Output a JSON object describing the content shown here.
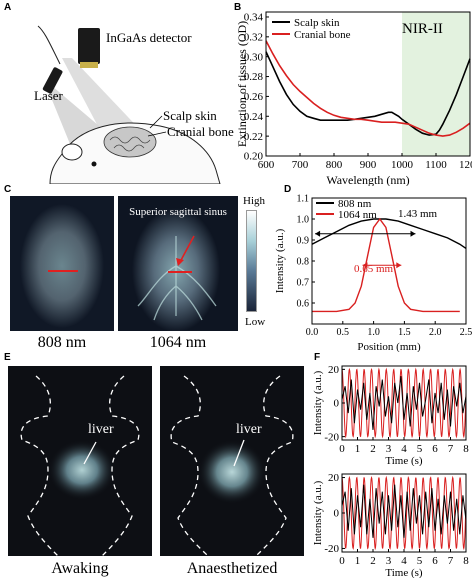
{
  "colors": {
    "black": "#000000",
    "red": "#d92020",
    "nir_band": "#e3f2df",
    "img_bg": "#101826"
  },
  "panel_a": {
    "label": "A",
    "detector": "InGaAs detector",
    "laser": "Laser",
    "scalp": "Scalp skin",
    "bone": "Cranial bone"
  },
  "panel_b": {
    "label": "B",
    "nir_label": "NIR-II"
  },
  "panel_c": {
    "label": "C",
    "annotation": "Superior sagittal sinus",
    "scale_high": "High",
    "scale_low": "Low",
    "cap_808": "808 nm",
    "cap_1064": "1064 nm"
  },
  "panel_d": {
    "label": "D",
    "width_808": "1.43 mm",
    "width_1064": "0.65 mm"
  },
  "panel_e": {
    "label": "E",
    "liver": "liver",
    "cap_awake": "Awaking",
    "cap_anaes": "Anaesthetized"
  },
  "panel_f": {
    "label": "F"
  },
  "chart_data": [
    {
      "id": "B",
      "type": "line",
      "xlabel": "Wavelength (nm)",
      "ylabel": "Extinction of tissues (OD)",
      "xlim": [
        600,
        1200
      ],
      "ylim": [
        0.2,
        0.345
      ],
      "xticks": [
        600,
        700,
        800,
        900,
        1000,
        1100,
        1200
      ],
      "yticks": [
        0.2,
        0.22,
        0.24,
        0.26,
        0.28,
        0.3,
        0.32,
        0.34
      ],
      "ytick_labels": [
        "0.20",
        "0.22",
        "0.24",
        "0.26",
        "0.28",
        "0.30",
        "0.32",
        "0.34"
      ],
      "shaded_region": [
        1000,
        1200
      ],
      "legend": "top-left",
      "series": [
        {
          "name": "Scalp skin",
          "color": "#000000",
          "x": [
            600,
            620,
            640,
            660,
            680,
            700,
            720,
            740,
            760,
            780,
            800,
            820,
            840,
            860,
            880,
            900,
            920,
            940,
            960,
            970,
            980,
            990,
            1000,
            1020,
            1040,
            1060,
            1080,
            1100,
            1110,
            1120,
            1140,
            1160,
            1180,
            1200
          ],
          "y": [
            0.305,
            0.29,
            0.275,
            0.262,
            0.252,
            0.245,
            0.24,
            0.238,
            0.236,
            0.236,
            0.236,
            0.236,
            0.236,
            0.237,
            0.238,
            0.239,
            0.24,
            0.242,
            0.244,
            0.244,
            0.242,
            0.24,
            0.237,
            0.232,
            0.227,
            0.223,
            0.221,
            0.222,
            0.226,
            0.232,
            0.246,
            0.262,
            0.28,
            0.298
          ]
        },
        {
          "name": "Cranial bone",
          "color": "#d92020",
          "x": [
            600,
            620,
            640,
            660,
            680,
            700,
            720,
            740,
            760,
            780,
            800,
            820,
            840,
            860,
            880,
            900,
            920,
            940,
            960,
            980,
            1000,
            1020,
            1040,
            1060,
            1080,
            1100,
            1120,
            1140,
            1160,
            1180,
            1200
          ],
          "y": [
            0.316,
            0.303,
            0.291,
            0.281,
            0.272,
            0.265,
            0.259,
            0.253,
            0.248,
            0.244,
            0.241,
            0.239,
            0.238,
            0.237,
            0.237,
            0.236,
            0.235,
            0.234,
            0.234,
            0.234,
            0.233,
            0.232,
            0.229,
            0.226,
            0.223,
            0.221,
            0.22,
            0.221,
            0.224,
            0.228,
            0.233
          ]
        }
      ]
    },
    {
      "id": "D",
      "type": "line",
      "xlabel": "Position (mm)",
      "ylabel": "Intensity (a.u.)",
      "xlim": [
        0,
        2.5
      ],
      "ylim": [
        0.5,
        1.1
      ],
      "xticks": [
        0.0,
        0.5,
        1.0,
        1.5,
        2.0,
        2.5
      ],
      "xtick_labels": [
        "0.0",
        "0.5",
        "1.0",
        "1.5",
        "2.0",
        "2.5"
      ],
      "yticks": [
        0.6,
        0.7,
        0.8,
        0.9,
        1.0,
        1.1
      ],
      "ytick_labels": [
        "0.6",
        "0.7",
        "0.8",
        "0.9",
        "1.0",
        "1.1"
      ],
      "legend": "top-left",
      "series": [
        {
          "name": "808 nm",
          "color": "#000000",
          "x": [
            0,
            0.2,
            0.4,
            0.6,
            0.8,
            1.0,
            1.1,
            1.2,
            1.4,
            1.6,
            1.8,
            2.0,
            2.2,
            2.4,
            2.5
          ],
          "y": [
            0.88,
            0.91,
            0.94,
            0.97,
            0.99,
            1.0,
            1.0,
            1.0,
            0.99,
            0.97,
            0.95,
            0.93,
            0.91,
            0.88,
            0.86
          ]
        },
        {
          "name": "1064 nm",
          "color": "#d92020",
          "x": [
            0,
            0.2,
            0.4,
            0.6,
            0.7,
            0.8,
            0.9,
            1.0,
            1.1,
            1.2,
            1.3,
            1.4,
            1.5,
            1.6,
            1.8,
            2.0,
            2.2,
            2.4
          ],
          "y": [
            0.56,
            0.56,
            0.56,
            0.57,
            0.6,
            0.68,
            0.82,
            0.96,
            1.0,
            0.96,
            0.82,
            0.68,
            0.6,
            0.57,
            0.56,
            0.56,
            0.56,
            0.56
          ]
        }
      ]
    },
    {
      "id": "F-top",
      "type": "line",
      "xlabel": "Time (s)",
      "ylabel": "Intensity (a.u.)",
      "xlim": [
        0,
        8
      ],
      "ylim": [
        -22,
        22
      ],
      "xticks": [
        0,
        1,
        2,
        3,
        4,
        5,
        6,
        7,
        8
      ],
      "yticks": [
        -20,
        0,
        20
      ],
      "series": [
        {
          "name": "",
          "color": "#d92020",
          "kind": "sine",
          "freq": 2.1,
          "amp": 20
        },
        {
          "name": "",
          "color": "#000000",
          "x": [
            0,
            0.2,
            0.4,
            0.6,
            0.8,
            1.0,
            1.2,
            1.4,
            1.6,
            1.8,
            2.0,
            2.2,
            2.4,
            2.6,
            2.8,
            3.0,
            3.2,
            3.4,
            3.6,
            3.8,
            4.0,
            4.2,
            4.4,
            4.6,
            4.8,
            5.0,
            5.2,
            5.4,
            5.6,
            5.8,
            6.0,
            6.2,
            6.4,
            6.6,
            6.8,
            7.0,
            7.2,
            7.4,
            7.6,
            7.8,
            8.0
          ],
          "y": [
            2,
            10,
            -6,
            14,
            -12,
            8,
            -4,
            12,
            -10,
            6,
            -16,
            10,
            -2,
            14,
            -8,
            4,
            -12,
            12,
            0,
            16,
            -10,
            6,
            -14,
            10,
            -4,
            12,
            -8,
            2,
            14,
            -12,
            6,
            -6,
            12,
            -10,
            8,
            -14,
            10,
            -2,
            12,
            -6,
            4
          ]
        }
      ]
    },
    {
      "id": "F-bottom",
      "type": "line",
      "xlabel": "Time (s)",
      "ylabel": "Intensity (a.u.)",
      "xlim": [
        0,
        8
      ],
      "ylim": [
        -22,
        22
      ],
      "xticks": [
        0,
        1,
        2,
        3,
        4,
        5,
        6,
        7,
        8
      ],
      "yticks": [
        -20,
        0,
        20
      ],
      "series": [
        {
          "name": "",
          "color": "#d92020",
          "kind": "sine",
          "freq": 2.1,
          "amp": 20
        },
        {
          "name": "",
          "color": "#000000",
          "x": [
            0,
            0.2,
            0.4,
            0.6,
            0.8,
            1.0,
            1.2,
            1.4,
            1.6,
            1.8,
            2.0,
            2.2,
            2.4,
            2.6,
            2.8,
            3.0,
            3.2,
            3.4,
            3.6,
            3.8,
            4.0,
            4.2,
            4.4,
            4.6,
            4.8,
            5.0,
            5.2,
            5.4,
            5.6,
            5.8,
            6.0,
            6.2,
            6.4,
            6.6,
            6.8,
            7.0,
            7.2,
            7.4,
            7.6,
            7.8,
            8.0
          ],
          "y": [
            4,
            12,
            -10,
            14,
            -12,
            10,
            -8,
            16,
            -12,
            8,
            -14,
            14,
            -6,
            12,
            -12,
            10,
            -10,
            16,
            -8,
            10,
            -14,
            12,
            -10,
            14,
            -6,
            10,
            -12,
            12,
            -8,
            14,
            -10,
            8,
            -12,
            10,
            -6,
            12,
            -10,
            8,
            -12,
            10,
            -4
          ]
        }
      ]
    }
  ]
}
